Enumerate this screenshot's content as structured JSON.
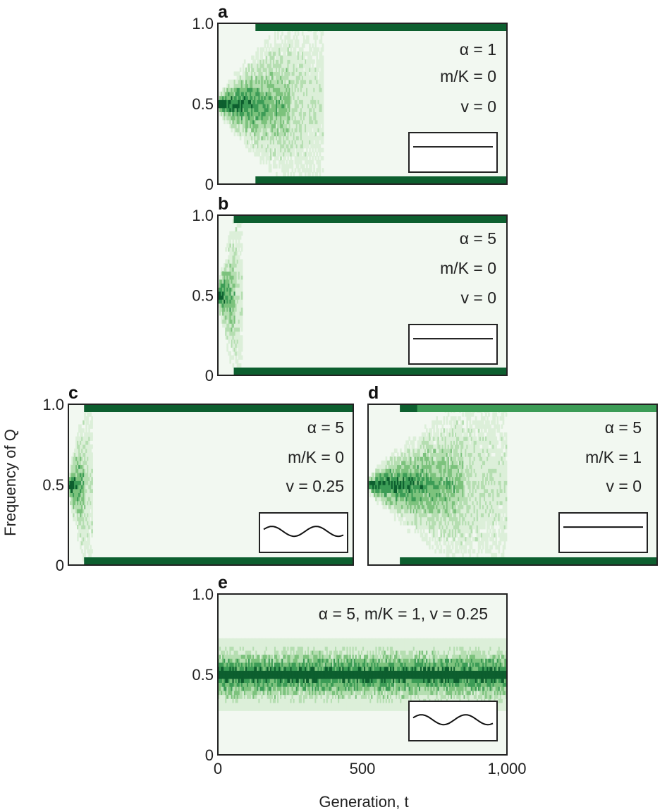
{
  "colors": {
    "background": "#f2f8f1",
    "shade_levels": [
      "#f2f8f1",
      "#dcefd9",
      "#b5deb1",
      "#7cc27d",
      "#3c9c56",
      "#0d5f2f"
    ],
    "frame": "#222222"
  },
  "chart_data": [
    {
      "type": "heatmap",
      "panel": "a",
      "ylabel": "",
      "y_ticks": [
        "0",
        "0.5",
        "1.0"
      ],
      "ylim": [
        0,
        1
      ],
      "xlim": [
        0,
        1000
      ],
      "annotations": [
        "α = 1",
        "m/K = 0",
        "v = 0"
      ],
      "params": {
        "alpha": 1,
        "m_over_K": 0,
        "v": 0
      },
      "inset_curve": "flat",
      "spread_until_generation": 250,
      "fixation_starts_generation": 130
    },
    {
      "type": "heatmap",
      "panel": "b",
      "y_ticks": [
        "0",
        "0.5",
        "1.0"
      ],
      "ylim": [
        0,
        1
      ],
      "xlim": [
        0,
        1000
      ],
      "annotations": [
        "α = 5",
        "m/K = 0",
        "v = 0"
      ],
      "params": {
        "alpha": 5,
        "m_over_K": 0,
        "v": 0
      },
      "inset_curve": "flat",
      "spread_until_generation": 60,
      "fixation_starts_generation": 55
    },
    {
      "type": "heatmap",
      "panel": "c",
      "ylabel": "Frequency of Q",
      "y_ticks": [
        "0",
        "0.5",
        "1.0"
      ],
      "ylim": [
        0,
        1
      ],
      "xlim": [
        0,
        1000
      ],
      "annotations": [
        "α = 5",
        "m/K = 0",
        "v = 0.25"
      ],
      "params": {
        "alpha": 5,
        "m_over_K": 0,
        "v": 0.25
      },
      "inset_curve": "wave",
      "spread_until_generation": 60,
      "fixation_starts_generation": 55
    },
    {
      "type": "heatmap",
      "panel": "d",
      "y_ticks": [],
      "ylim": [
        0,
        1
      ],
      "xlim": [
        0,
        1000
      ],
      "annotations": [
        "α = 5",
        "m/K = 1",
        "v = 0"
      ],
      "params": {
        "alpha": 5,
        "m_over_K": 1,
        "v": 0
      },
      "inset_curve": "flat",
      "spread_until_generation": 330,
      "fixation_starts_generation": 110
    },
    {
      "type": "heatmap",
      "panel": "e",
      "y_ticks": [
        "0",
        "0.5",
        "1.0"
      ],
      "x_ticks": [
        "0",
        "500",
        "1,000"
      ],
      "xlabel": "Generation, t",
      "ylim": [
        0,
        1
      ],
      "xlim": [
        0,
        1000
      ],
      "annotations": [
        "α = 5, m/K = 1, v = 0.25"
      ],
      "params": {
        "alpha": 5,
        "m_over_K": 1,
        "v": 0.25
      },
      "inset_curve": "wave",
      "stationary_band": [
        0.33,
        0.67
      ]
    }
  ]
}
